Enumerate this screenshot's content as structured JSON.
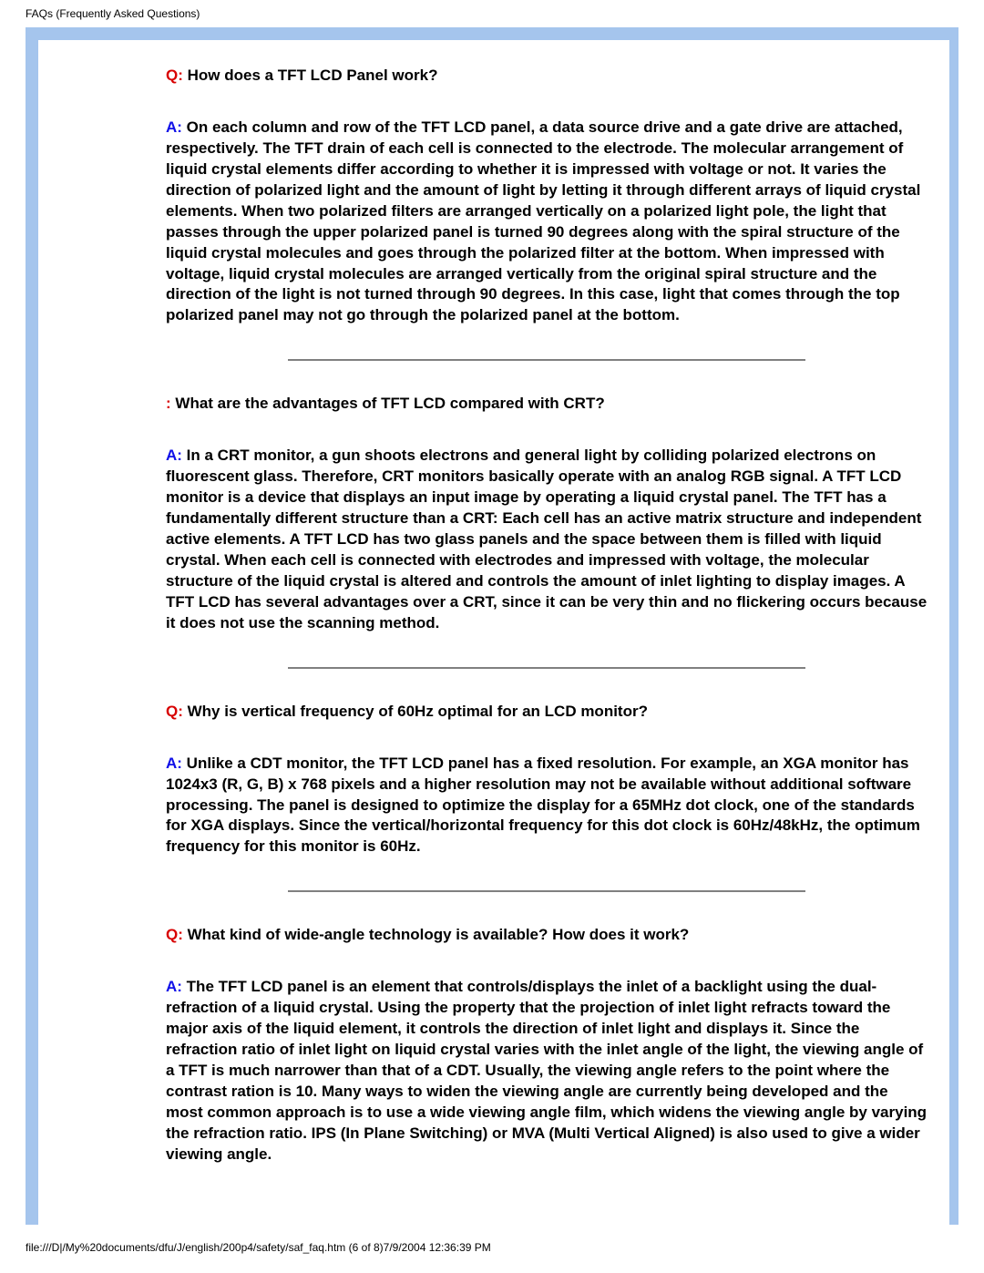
{
  "header_text": "FAQs (Frequently Asked Questions)",
  "footer_path": "file:///D|/My%20documents/dfu/J/english/200p4/safety/saf_faq.htm (6 of 8)7/9/2004 12:36:39 PM",
  "colors": {
    "q_label": "#d80000",
    "a_label": "#1010e8",
    "band": "#a5c5ed",
    "divider": "#808080",
    "text": "#000000",
    "bg": "#ffffff"
  },
  "faqs": [
    {
      "q_prefix": "Q:",
      "q_text": " How does a TFT LCD Panel work?",
      "a_prefix": "A:",
      "a_text": " On each column and row of the TFT LCD panel, a data source drive and a gate drive are attached, respectively. The TFT drain of each cell is connected to the electrode. The molecular arrangement of liquid crystal elements differ according to whether it is impressed with voltage or not. It varies the direction of polarized light and the amount of light by letting it through different arrays of liquid crystal elements. When two polarized filters are arranged vertically on a polarized light pole, the light that passes through the upper polarized panel is turned 90 degrees along with the spiral structure of the liquid crystal molecules and goes through the polarized filter at the bottom. When impressed with voltage, liquid crystal molecules are arranged vertically from the original spiral structure and the direction of the light is not turned through 90 degrees. In this case, light that comes through the top polarized panel may not go through the polarized panel at the bottom."
    },
    {
      "q_prefix": ":",
      "q_text": " What are the advantages of TFT LCD compared with CRT?",
      "a_prefix": "A:",
      "a_text": " In a CRT monitor, a gun shoots electrons and general light by colliding polarized electrons on fluorescent glass. Therefore, CRT monitors basically operate with an analog RGB signal. A TFT LCD monitor is a device that displays an input image by operating a liquid crystal panel. The TFT has a fundamentally different structure than a CRT: Each cell has an active matrix structure and independent active elements. A TFT LCD has two glass panels and the space between them is filled with liquid crystal. When each cell is connected with electrodes and impressed with voltage, the molecular structure of the liquid crystal is altered and controls the amount of inlet lighting to display images. A TFT LCD has several advantages over a CRT, since it can be very thin and no flickering occurs because it does not use the scanning method."
    },
    {
      "q_prefix": "Q:",
      "q_text": " Why is vertical frequency of 60Hz optimal for an LCD monitor?",
      "a_prefix": "A:",
      "a_text": " Unlike a CDT monitor, the TFT LCD panel has a fixed resolution. For example, an XGA monitor has 1024x3 (R, G, B) x 768 pixels and a higher resolution may not be available without additional software processing. The panel is designed to optimize the display for a 65MHz dot clock, one of the standards for XGA displays. Since the vertical/horizontal frequency for this dot clock is 60Hz/48kHz, the optimum frequency for this monitor is 60Hz."
    },
    {
      "q_prefix": "Q:",
      "q_text": " What kind of wide-angle technology is available? How does it work?",
      "a_prefix": "A:",
      "a_text": " The TFT LCD panel is an element that controls/displays the inlet of a backlight using the dual-refraction of a liquid crystal. Using the property that the projection of inlet light refracts toward the major axis of the liquid element, it controls the direction of inlet light and displays it. Since the refraction ratio of inlet light on liquid crystal varies with the inlet angle of the light, the viewing angle of a TFT is much narrower than that of a CDT. Usually, the viewing angle refers to the point where the contrast ration is 10. Many ways to widen the viewing angle are currently being developed and the most common approach is to use a wide viewing angle film, which widens the viewing angle by varying the refraction ratio. IPS (In Plane Switching) or MVA (Multi Vertical Aligned) is also used to give a wider viewing angle."
    }
  ]
}
